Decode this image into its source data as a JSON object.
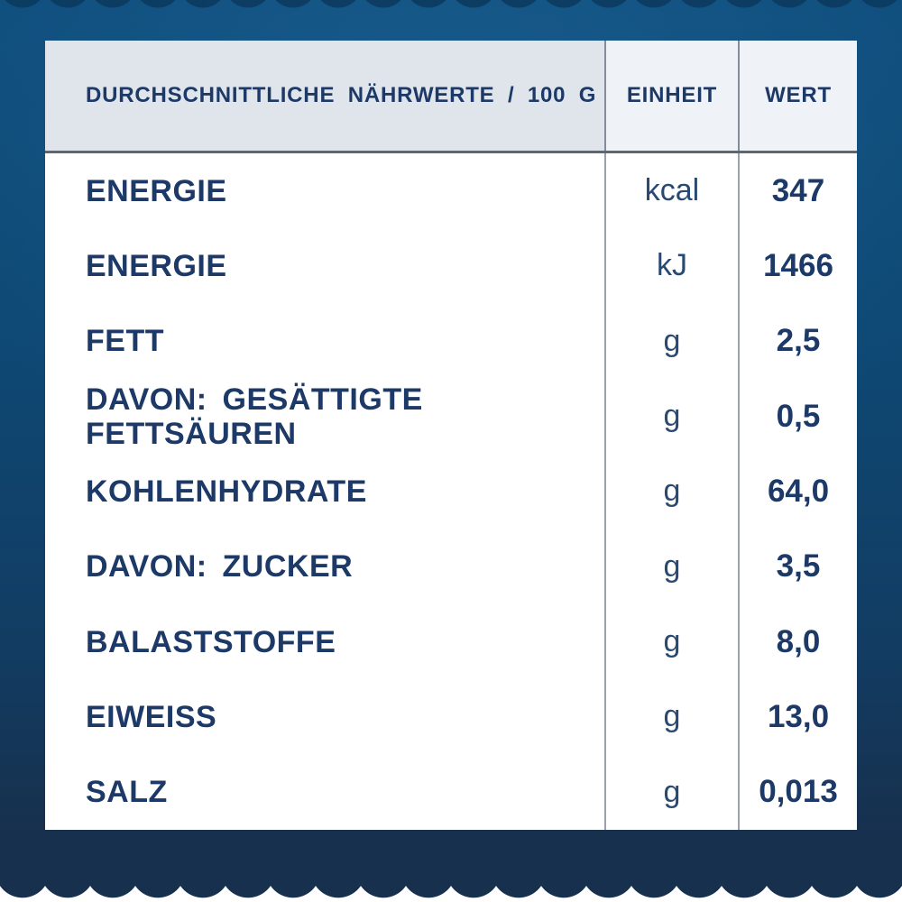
{
  "colors": {
    "background_blue": "#0E4772",
    "background_bottom_navy": "#17304D",
    "table_background": "#FFFFFF",
    "header_label_cell_background": "#E0E4EB",
    "header_unit_value_cell_background": "#EFF2F6",
    "text_navy": "#1C3967",
    "unit_text": "#2A4971",
    "column_divider": "#9AA1AC",
    "header_divider": "#5E6671",
    "scallop_white": "#FFFFFF"
  },
  "table": {
    "header": {
      "label": "DURCHSCHNITTLICHE NÄHRWERTE / 100 G",
      "unit": "EINHEIT",
      "value": "WERT"
    },
    "rows": [
      {
        "label": "ENERGIE",
        "unit": "kcal",
        "value": "347"
      },
      {
        "label": "ENERGIE",
        "unit": "kJ",
        "value": "1466"
      },
      {
        "label": "FETT",
        "unit": "g",
        "value": "2,5"
      },
      {
        "label": "DAVON: GESÄTTIGTE FETTSÄUREN",
        "unit": "g",
        "value": "0,5"
      },
      {
        "label": "KOHLENHYDRATE",
        "unit": "g",
        "value": "64,0"
      },
      {
        "label": "DAVON: ZUCKER",
        "unit": "g",
        "value": "3,5"
      },
      {
        "label": "BALASTSTOFFE",
        "unit": "g",
        "value": "8,0"
      },
      {
        "label": "EIWEISS",
        "unit": "g",
        "value": "13,0"
      },
      {
        "label": "SALZ",
        "unit": "g",
        "value": "0,013"
      }
    ]
  }
}
